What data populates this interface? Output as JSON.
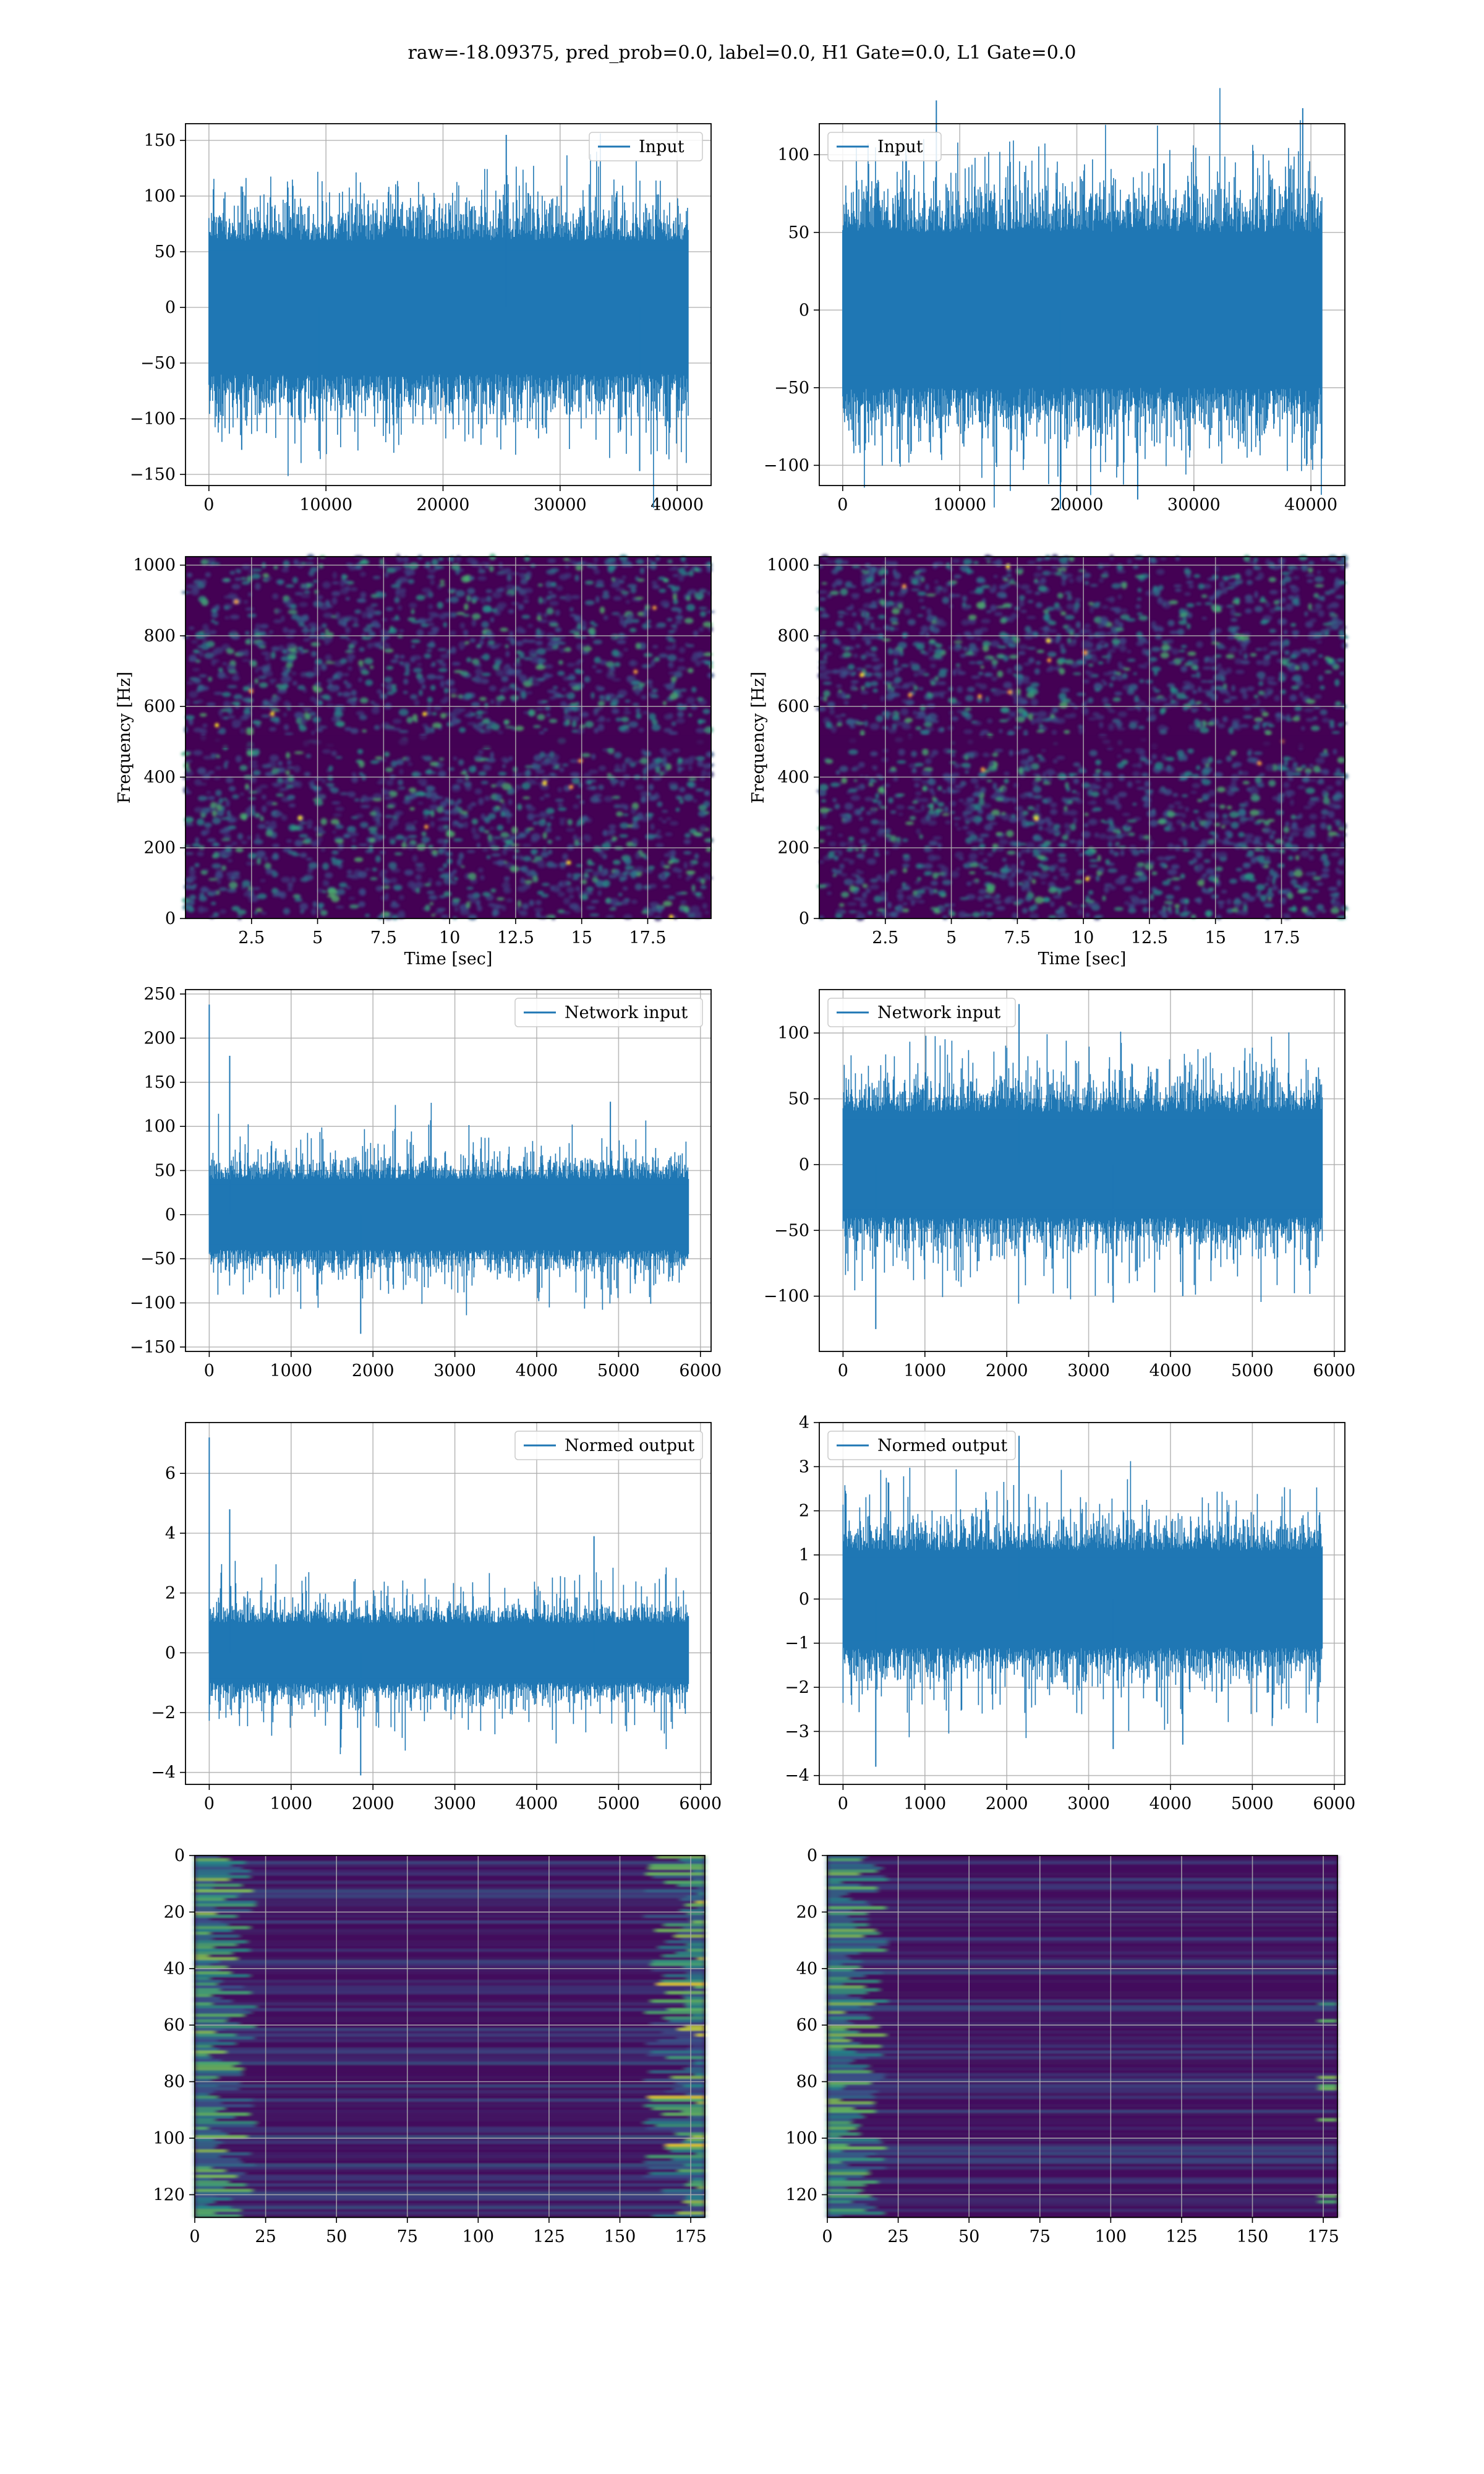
{
  "figure": {
    "suptitle": "raw=-18.09375, pred_prob=0.0, label=0.0, H1 Gate=0.0, L1 Gate=0.0"
  },
  "colors": {
    "line": "#1f77b4",
    "grid": "#b0b0b0",
    "viridis_dark": "#440154",
    "viridis_mid": "#31688e",
    "viridis_green": "#35b779",
    "viridis_yellow": "#fde725"
  },
  "chart_data": [
    {
      "id": "h1-input",
      "type": "line",
      "legend": "Input",
      "legend_loc": "upper right",
      "xlim": [
        -2000,
        42900
      ],
      "ylim": [
        -160,
        165
      ],
      "xticks": [
        0,
        10000,
        20000,
        30000,
        40000
      ],
      "yticks": [
        -150,
        -100,
        -50,
        0,
        50,
        100,
        150
      ],
      "x_range": [
        0,
        40960
      ],
      "band": [
        -60,
        60
      ],
      "spike": [
        -120,
        105
      ],
      "peaks": [
        [
          25400,
          155
        ],
        [
          36800,
          -147
        ],
        [
          2800,
          -128
        ],
        [
          9400,
          -129
        ]
      ],
      "xlabel": "",
      "ylabel": ""
    },
    {
      "id": "l1-input",
      "type": "line",
      "legend": "Input",
      "legend_loc": "upper left",
      "xlim": [
        -2000,
        42900
      ],
      "ylim": [
        -113,
        120
      ],
      "xticks": [
        0,
        10000,
        20000,
        30000,
        40000
      ],
      "yticks": [
        -100,
        -50,
        0,
        50,
        100
      ],
      "x_range": [
        0,
        40960
      ],
      "band": [
        -50,
        50
      ],
      "spike": [
        -95,
        95
      ],
      "peaks": [
        [
          8000,
          135
        ],
        [
          39300,
          130
        ],
        [
          18600,
          -128
        ],
        [
          25200,
          -122
        ]
      ],
      "xlabel": "",
      "ylabel": ""
    },
    {
      "id": "h1-spectrogram",
      "type": "heatmap",
      "xlim": [
        0,
        19.9
      ],
      "ylim": [
        0,
        1024
      ],
      "xticks": [
        2.5,
        5.0,
        7.5,
        10.0,
        12.5,
        15.0,
        17.5
      ],
      "yticks": [
        0,
        200,
        400,
        600,
        800,
        1000
      ],
      "xlabel": "Time [sec]",
      "ylabel": "Frequency [Hz]",
      "dark_band": 500
    },
    {
      "id": "l1-spectrogram",
      "type": "heatmap",
      "xlim": [
        0,
        19.9
      ],
      "ylim": [
        0,
        1024
      ],
      "xticks": [
        2.5,
        5.0,
        7.5,
        10.0,
        12.5,
        15.0,
        17.5
      ],
      "yticks": [
        0,
        200,
        400,
        600,
        800,
        1000
      ],
      "xlabel": "Time [sec]",
      "ylabel": "Frequency [Hz]",
      "dark_band": 500
    },
    {
      "id": "h1-network-input",
      "type": "line",
      "legend": "Network input",
      "legend_loc": "upper right",
      "xlim": [
        -290,
        6130
      ],
      "ylim": [
        -155,
        255
      ],
      "xticks": [
        0,
        1000,
        2000,
        3000,
        4000,
        5000,
        6000
      ],
      "yticks": [
        -150,
        -100,
        -50,
        0,
        50,
        100,
        150,
        200,
        250
      ],
      "x_range": [
        0,
        5850
      ],
      "band": [
        -40,
        40
      ],
      "spike": [
        -90,
        95
      ],
      "peaks": [
        [
          0,
          238
        ],
        [
          1850,
          -135
        ],
        [
          4900,
          128
        ],
        [
          250,
          180
        ]
      ],
      "xlabel": "",
      "ylabel": ""
    },
    {
      "id": "l1-network-input",
      "type": "line",
      "legend": "Network input",
      "legend_loc": "upper left",
      "xlim": [
        -290,
        6130
      ],
      "ylim": [
        -142,
        133
      ],
      "xticks": [
        0,
        1000,
        2000,
        3000,
        4000,
        5000,
        6000
      ],
      "yticks": [
        -100,
        -50,
        0,
        50,
        100
      ],
      "x_range": [
        0,
        5850
      ],
      "band": [
        -40,
        40
      ],
      "spike": [
        -85,
        85
      ],
      "peaks": [
        [
          2150,
          122
        ],
        [
          400,
          -125
        ],
        [
          3300,
          -105
        ],
        [
          4150,
          -100
        ]
      ],
      "xlabel": "",
      "ylabel": ""
    },
    {
      "id": "h1-normed-output",
      "type": "line",
      "legend": "Normed output",
      "legend_loc": "upper right",
      "xlim": [
        -290,
        6130
      ],
      "ylim": [
        -4.4,
        7.7
      ],
      "xticks": [
        0,
        1000,
        2000,
        3000,
        4000,
        5000,
        6000
      ],
      "yticks": [
        -4,
        -2,
        0,
        2,
        4,
        6
      ],
      "x_range": [
        0,
        5850
      ],
      "band": [
        -1.0,
        1.0
      ],
      "spike": [
        -2.5,
        2.6
      ],
      "peaks": [
        [
          0,
          7.2
        ],
        [
          1850,
          -4.1
        ],
        [
          4700,
          3.9
        ],
        [
          250,
          4.8
        ]
      ],
      "xlabel": "",
      "ylabel": ""
    },
    {
      "id": "l1-normed-output",
      "type": "line",
      "legend": "Normed output",
      "legend_loc": "upper left",
      "xlim": [
        -290,
        6130
      ],
      "ylim": [
        -4.2,
        4.0
      ],
      "xticks": [
        0,
        1000,
        2000,
        3000,
        4000,
        5000,
        6000
      ],
      "yticks": [
        -4,
        -3,
        -2,
        -1,
        0,
        1,
        2,
        3,
        4
      ],
      "x_range": [
        0,
        5850
      ],
      "band": [
        -1.1,
        1.1
      ],
      "spike": [
        -2.4,
        2.4
      ],
      "peaks": [
        [
          2150,
          3.7
        ],
        [
          400,
          -3.8
        ],
        [
          3300,
          -3.4
        ],
        [
          4150,
          -3.3
        ]
      ],
      "xlabel": "",
      "ylabel": ""
    },
    {
      "id": "h1-feature-map",
      "type": "heatmap",
      "xlim": [
        0,
        180
      ],
      "ylim": [
        128,
        0
      ],
      "xticks": [
        0,
        25,
        50,
        75,
        100,
        125,
        150,
        175
      ],
      "yticks": [
        0,
        20,
        40,
        60,
        80,
        100,
        120
      ],
      "xlabel": "",
      "ylabel": ""
    },
    {
      "id": "l1-feature-map",
      "type": "heatmap",
      "xlim": [
        0,
        180
      ],
      "ylim": [
        128,
        0
      ],
      "xticks": [
        0,
        25,
        50,
        75,
        100,
        125,
        150,
        175
      ],
      "yticks": [
        0,
        20,
        40,
        60,
        80,
        100,
        120
      ],
      "xlabel": "",
      "ylabel": ""
    }
  ]
}
